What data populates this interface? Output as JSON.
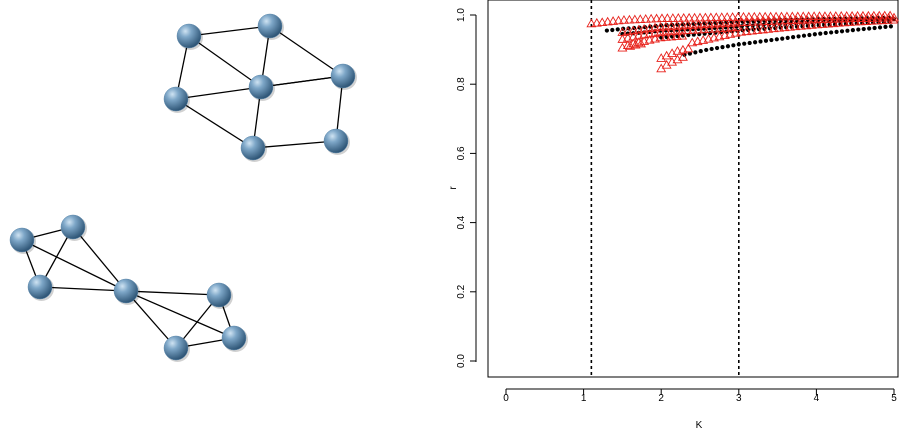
{
  "networks": [
    {
      "nodes": [
        {
          "id": "a1"
        },
        {
          "id": "a2"
        },
        {
          "id": "a3"
        },
        {
          "id": "a4"
        },
        {
          "id": "a5"
        },
        {
          "id": "a6"
        },
        {
          "id": "a7"
        },
        {
          "id": "a8"
        }
      ],
      "edges": [
        [
          "a1",
          "a2"
        ],
        [
          "a1",
          "a3"
        ],
        [
          "a1",
          "a4"
        ],
        [
          "a2",
          "a3"
        ],
        [
          "a2",
          "a5"
        ],
        [
          "a3",
          "a5"
        ],
        [
          "a3",
          "a4"
        ],
        [
          "a3",
          "a6"
        ],
        [
          "a3",
          "a8"
        ],
        [
          "a5",
          "a8"
        ],
        [
          "a4",
          "a6"
        ],
        [
          "a6",
          "a7"
        ],
        [
          "a8",
          "a7"
        ]
      ]
    },
    {
      "nodes": [
        {
          "id": "b1"
        },
        {
          "id": "b2"
        },
        {
          "id": "b3"
        },
        {
          "id": "b4"
        },
        {
          "id": "b5"
        },
        {
          "id": "b6"
        },
        {
          "id": "b7"
        }
      ],
      "edges": [
        [
          "b1",
          "b2"
        ],
        [
          "b1",
          "b3"
        ],
        [
          "b1",
          "b4"
        ],
        [
          "b2",
          "b3"
        ],
        [
          "b2",
          "b4"
        ],
        [
          "b3",
          "b4"
        ],
        [
          "b4",
          "b5"
        ],
        [
          "b4",
          "b6"
        ],
        [
          "b4",
          "b7"
        ],
        [
          "b5",
          "b6"
        ],
        [
          "b5",
          "b7"
        ],
        [
          "b6",
          "b7"
        ]
      ]
    }
  ],
  "node_color": "#5b87ab",
  "chart_data": {
    "type": "scatter",
    "xlabel": "K",
    "ylabel": "r",
    "xlim": [
      -0.3,
      5.05
    ],
    "ylim": [
      -0.04,
      1.04
    ],
    "xticks": [
      "0",
      "1",
      "2",
      "3",
      "4",
      "5"
    ],
    "yticks": [
      "0.0",
      "0.2",
      "0.4",
      "0.6",
      "0.8",
      "1.0"
    ],
    "reference_lines_x": [
      1.1,
      3.0
    ],
    "series": [
      {
        "marker": "filled-circle",
        "color": "#000000",
        "note_curves": [
          {
            "x": [
              1.3,
              1.5,
              1.8,
              2.0,
              2.5,
              3.0,
              3.5,
              4.0,
              4.5,
              5.0
            ],
            "y": [
              0.955,
              0.96,
              0.965,
              0.97,
              0.975,
              0.98,
              0.985,
              0.988,
              0.99,
              0.992
            ]
          },
          {
            "x": [
              1.5,
              1.8,
              2.0,
              2.5,
              3.0,
              3.5,
              4.0,
              4.5,
              5.0
            ],
            "y": [
              0.945,
              0.95,
              0.955,
              0.96,
              0.967,
              0.974,
              0.98,
              0.985,
              0.988
            ]
          },
          {
            "x": [
              2.0,
              2.5,
              3.0,
              3.5,
              4.0,
              4.5,
              5.0
            ],
            "y": [
              0.935,
              0.945,
              0.955,
              0.963,
              0.97,
              0.976,
              0.981
            ]
          },
          {
            "x": [
              2.3,
              2.6,
              3.0,
              3.5,
              4.0,
              4.5,
              5.0
            ],
            "y": [
              0.885,
              0.9,
              0.915,
              0.93,
              0.945,
              0.957,
              0.968
            ]
          }
        ]
      },
      {
        "marker": "open-triangle",
        "color": "#e8211b",
        "note_curves": [
          {
            "x": [
              1.1,
              1.3,
              1.5,
              1.8,
              2.0,
              2.5,
              3.0,
              3.5,
              4.0,
              4.5,
              5.0
            ],
            "y": [
              0.975,
              0.98,
              0.985,
              0.988,
              0.99,
              0.992,
              0.994,
              0.995,
              0.996,
              0.997,
              0.998
            ]
          },
          {
            "x": [
              1.5,
              1.8,
              2.0,
              2.5,
              3.0,
              3.5,
              4.0,
              4.5,
              5.0
            ],
            "y": [
              0.95,
              0.96,
              0.965,
              0.972,
              0.978,
              0.983,
              0.987,
              0.99,
              0.992
            ]
          },
          {
            "x": [
              1.5,
              1.7,
              2.0,
              2.3,
              2.7,
              3.0
            ],
            "y": [
              0.93,
              0.94,
              0.95,
              0.955,
              0.96,
              0.965
            ]
          },
          {
            "x": [
              1.5,
              1.6,
              1.8,
              2.0,
              2.3
            ],
            "y": [
              0.905,
              0.915,
              0.925,
              0.935,
              0.94
            ]
          },
          {
            "x": [
              1.6,
              1.7,
              1.8
            ],
            "y": [
              0.91,
              0.915,
              0.92
            ]
          },
          {
            "x": [
              2.0,
              2.1,
              2.2,
              2.4
            ],
            "y": [
              0.875,
              0.885,
              0.895,
              0.905
            ]
          },
          {
            "x": [
              2.0,
              2.1,
              2.2,
              2.3
            ],
            "y": [
              0.845,
              0.86,
              0.87,
              0.88
            ]
          },
          {
            "x": [
              2.4,
              2.6,
              2.8,
              3.0,
              3.5,
              4.0,
              4.5,
              5.0
            ],
            "y": [
              0.92,
              0.93,
              0.94,
              0.95,
              0.962,
              0.972,
              0.98,
              0.986
            ]
          }
        ]
      }
    ]
  }
}
